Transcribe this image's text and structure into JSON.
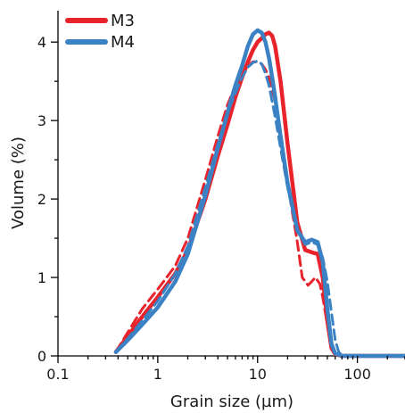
{
  "chart_data": {
    "type": "line",
    "xscale": "log",
    "xlim": [
      0.1,
      300
    ],
    "ylim": [
      0,
      4.4
    ],
    "xlabel": "Grain size (µm)",
    "ylabel": "Volume (%)",
    "x_ticks": [
      0.1,
      1,
      10,
      100
    ],
    "x_tick_labels": [
      "0.1",
      "1",
      "10",
      "100"
    ],
    "y_ticks": [
      0,
      1,
      2,
      3,
      4
    ],
    "y_tick_labels": [
      "0",
      "1",
      "2",
      "3",
      "4"
    ],
    "legend_position": "top-left",
    "legend": [
      {
        "label": "M3",
        "color": "#e8232b"
      },
      {
        "label": "M4",
        "color": "#3b82c4"
      }
    ],
    "series": [
      {
        "name": "M3",
        "color": "#e8232b",
        "style": "solid",
        "x": [
          0.38,
          0.5,
          0.7,
          1.0,
          1.5,
          2.0,
          3.0,
          4.0,
          5.0,
          6.0,
          7.0,
          8.0,
          9.0,
          10.0,
          11.0,
          12.0,
          13.0,
          14.0,
          15.0,
          17.0,
          20.0,
          25.0,
          30.0,
          35.0,
          40.0,
          45.0,
          50.0,
          55.0,
          60.0,
          70.0,
          80.0,
          100.0,
          150.0,
          300.0
        ],
        "y": [
          0.05,
          0.25,
          0.5,
          0.75,
          1.05,
          1.35,
          2.0,
          2.55,
          2.95,
          3.3,
          3.55,
          3.75,
          3.9,
          4.0,
          4.05,
          4.1,
          4.12,
          4.08,
          3.95,
          3.5,
          2.7,
          1.7,
          1.35,
          1.32,
          1.3,
          1.0,
          0.45,
          0.1,
          0.02,
          0.0,
          0.0,
          0.0,
          0.0,
          0.0
        ]
      },
      {
        "name": "M3 (dashed)",
        "color": "#e8232b",
        "style": "dashed",
        "x": [
          0.38,
          0.5,
          0.7,
          1.0,
          1.5,
          2.0,
          3.0,
          4.0,
          5.0,
          6.0,
          7.0,
          8.0,
          9.0,
          10.0,
          11.0,
          12.0,
          13.0,
          15.0,
          17.0,
          20.0,
          25.0,
          28.0,
          32.0,
          35.0,
          38.0,
          42.0,
          45.0,
          50.0,
          55.0,
          60.0,
          70.0,
          100.0,
          300.0
        ],
        "y": [
          0.05,
          0.3,
          0.6,
          0.85,
          1.15,
          1.5,
          2.25,
          2.8,
          3.2,
          3.45,
          3.6,
          3.7,
          3.75,
          3.75,
          3.72,
          3.65,
          3.55,
          3.25,
          2.85,
          2.2,
          1.45,
          1.0,
          0.9,
          0.95,
          1.0,
          0.92,
          0.75,
          0.4,
          0.1,
          0.02,
          0.0,
          0.0,
          0.0
        ]
      },
      {
        "name": "M4",
        "color": "#3b82c4",
        "style": "solid",
        "x": [
          0.38,
          0.5,
          0.7,
          1.0,
          1.5,
          2.0,
          3.0,
          4.0,
          5.0,
          6.0,
          7.0,
          8.0,
          9.0,
          10.0,
          11.0,
          12.0,
          13.0,
          14.0,
          15.0,
          17.0,
          20.0,
          25.0,
          30.0,
          35.0,
          40.0,
          45.0,
          50.0,
          55.0,
          60.0,
          70.0,
          80.0,
          100.0,
          150.0,
          300.0
        ],
        "y": [
          0.05,
          0.2,
          0.4,
          0.62,
          0.95,
          1.3,
          2.05,
          2.65,
          3.1,
          3.45,
          3.7,
          3.95,
          4.1,
          4.15,
          4.12,
          4.0,
          3.8,
          3.55,
          3.3,
          2.8,
          2.2,
          1.6,
          1.45,
          1.48,
          1.45,
          1.2,
          0.6,
          0.15,
          0.03,
          0.0,
          0.0,
          0.0,
          0.0,
          0.0
        ]
      },
      {
        "name": "M4 (dashed)",
        "color": "#3b82c4",
        "style": "dashed",
        "x": [
          0.38,
          0.5,
          0.7,
          1.0,
          1.5,
          2.0,
          3.0,
          4.0,
          5.0,
          6.0,
          7.0,
          8.0,
          9.0,
          10.0,
          11.0,
          12.0,
          13.0,
          15.0,
          17.0,
          20.0,
          25.0,
          30.0,
          35.0,
          40.0,
          45.0,
          50.0,
          55.0,
          60.0,
          65.0,
          70.0,
          100.0,
          300.0
        ],
        "y": [
          0.05,
          0.22,
          0.45,
          0.7,
          1.05,
          1.4,
          2.15,
          2.7,
          3.1,
          3.35,
          3.55,
          3.68,
          3.74,
          3.76,
          3.72,
          3.6,
          3.45,
          3.05,
          2.65,
          2.15,
          1.6,
          1.42,
          1.45,
          1.42,
          1.25,
          0.95,
          0.55,
          0.2,
          0.05,
          0.01,
          0.0,
          0.0
        ]
      }
    ]
  }
}
